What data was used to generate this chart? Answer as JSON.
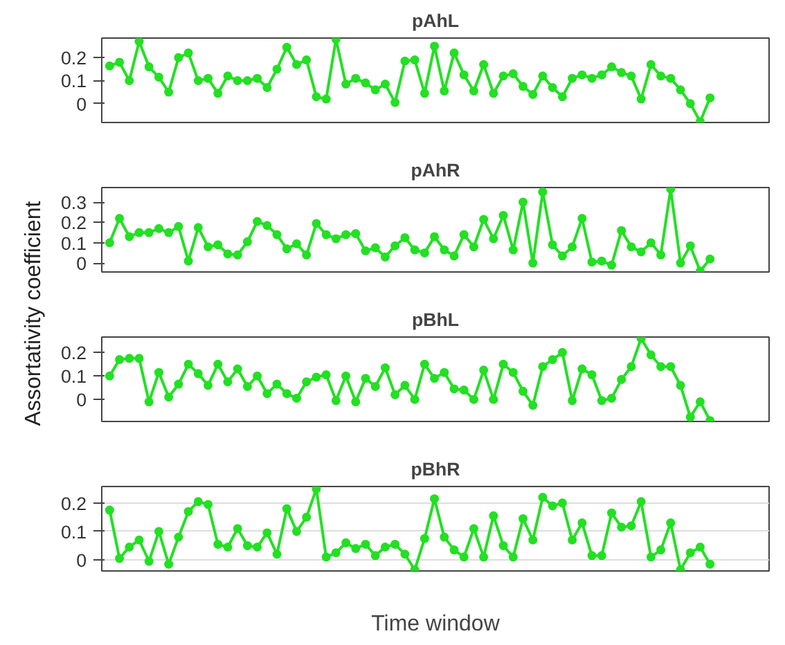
{
  "chart_data": [
    {
      "type": "line",
      "title": "pAhL",
      "ylabel": "Assortativity coefficient",
      "categories": [
        null,
        null,
        null,
        null,
        null,
        null,
        null,
        null,
        null,
        null,
        null,
        null,
        null,
        null,
        null,
        null,
        null,
        null,
        null,
        null,
        null,
        null,
        null,
        null,
        null,
        null,
        null,
        null,
        null,
        null,
        null,
        null,
        null,
        null,
        null,
        null,
        null,
        null,
        null,
        null,
        null,
        null,
        null,
        null,
        null,
        null,
        null,
        null,
        null,
        null,
        null,
        null,
        null,
        null,
        null,
        null,
        null,
        null,
        null,
        null,
        null,
        null
      ],
      "ylim": [
        -0.082,
        0.285
      ],
      "yticks": [
        0,
        0.1,
        0.2
      ],
      "tick_labels": "y",
      "grid": false,
      "marker": "circle",
      "line_style": "solid",
      "series": [
        {
          "color": "#22e022",
          "values": [
            0.164,
            0.18,
            0.1,
            0.27,
            0.16,
            0.115,
            0.05,
            0.2,
            0.22,
            0.1,
            0.11,
            0.045,
            0.12,
            0.1,
            0.1,
            0.11,
            0.07,
            0.15,
            0.245,
            0.17,
            0.19,
            0.03,
            0.02,
            0.28,
            0.085,
            0.11,
            0.09,
            0.06,
            0.085,
            0.005,
            0.185,
            0.19,
            0.045,
            0.25,
            0.055,
            0.22,
            0.125,
            0.055,
            0.17,
            0.045,
            0.12,
            0.13,
            0.075,
            0.04,
            0.12,
            0.07,
            0.03,
            0.11,
            0.125,
            0.11,
            0.125,
            0.16,
            0.135,
            0.12,
            0.02,
            0.17,
            0.12,
            0.11,
            0.06,
            0.0,
            -0.078,
            0.025
          ]
        }
      ]
    },
    {
      "type": "line",
      "title": "pAhR",
      "categories": [
        null,
        null,
        null,
        null,
        null,
        null,
        null,
        null,
        null,
        null,
        null,
        null,
        null,
        null,
        null,
        null,
        null,
        null,
        null,
        null,
        null,
        null,
        null,
        null,
        null,
        null,
        null,
        null,
        null,
        null,
        null,
        null,
        null,
        null,
        null,
        null,
        null,
        null,
        null,
        null,
        null,
        null,
        null,
        null,
        null,
        null,
        null,
        null,
        null,
        null,
        null,
        null,
        null,
        null,
        null,
        null,
        null,
        null,
        null,
        null,
        null,
        null
      ],
      "ylim": [
        -0.044,
        0.372
      ],
      "yticks": [
        0,
        0.1,
        0.2,
        0.3
      ],
      "tick_labels": "y",
      "grid": false,
      "marker": "circle",
      "line_style": "solid",
      "series": [
        {
          "color": "#22e022",
          "values": [
            0.1,
            0.22,
            0.13,
            0.15,
            0.15,
            0.17,
            0.15,
            0.18,
            0.01,
            0.175,
            0.08,
            0.09,
            0.045,
            0.04,
            0.105,
            0.205,
            0.185,
            0.14,
            0.07,
            0.095,
            0.04,
            0.195,
            0.14,
            0.12,
            0.14,
            0.145,
            0.06,
            0.075,
            0.03,
            0.085,
            0.125,
            0.065,
            0.05,
            0.13,
            0.065,
            0.035,
            0.14,
            0.08,
            0.215,
            0.12,
            0.235,
            0.065,
            0.3,
            0.0,
            0.35,
            0.09,
            0.035,
            0.08,
            0.22,
            0.005,
            0.01,
            -0.01,
            0.16,
            0.08,
            0.055,
            0.1,
            0.04,
            0.365,
            0.0,
            0.085,
            -0.04,
            0.02
          ]
        }
      ]
    },
    {
      "type": "line",
      "title": "pBhL",
      "categories": [
        null,
        null,
        null,
        null,
        null,
        null,
        null,
        null,
        null,
        null,
        null,
        null,
        null,
        null,
        null,
        null,
        null,
        null,
        null,
        null,
        null,
        null,
        null,
        null,
        null,
        null,
        null,
        null,
        null,
        null,
        null,
        null,
        null,
        null,
        null,
        null,
        null,
        null,
        null,
        null,
        null,
        null,
        null,
        null,
        null,
        null,
        null,
        null,
        null,
        null,
        null,
        null,
        null,
        null,
        null,
        null,
        null,
        null,
        null,
        null,
        null,
        null
      ],
      "ylim": [
        -0.094,
        0.266
      ],
      "yticks": [
        0,
        0.1,
        0.2
      ],
      "tick_labels": "y",
      "grid": false,
      "marker": "circle",
      "line_style": "solid",
      "series": [
        {
          "color": "#22e022",
          "values": [
            0.1,
            0.17,
            0.175,
            0.175,
            -0.01,
            0.115,
            0.01,
            0.065,
            0.15,
            0.11,
            0.06,
            0.15,
            0.075,
            0.13,
            0.055,
            0.1,
            0.025,
            0.065,
            0.025,
            0.005,
            0.075,
            0.095,
            0.105,
            -0.005,
            0.1,
            -0.01,
            0.09,
            0.055,
            0.135,
            0.02,
            0.06,
            0.0,
            0.15,
            0.09,
            0.115,
            0.045,
            0.04,
            0.0,
            0.125,
            0.0,
            0.15,
            0.115,
            0.035,
            -0.025,
            0.14,
            0.17,
            0.2,
            -0.005,
            0.13,
            0.105,
            -0.005,
            0.005,
            0.085,
            0.14,
            0.26,
            0.19,
            0.14,
            0.14,
            0.06,
            -0.075,
            -0.01,
            -0.09
          ]
        }
      ]
    },
    {
      "type": "line",
      "title": "pBhR",
      "xlabel": "Time window",
      "categories": [
        null,
        null,
        null,
        null,
        null,
        null,
        null,
        null,
        null,
        null,
        null,
        null,
        null,
        null,
        null,
        null,
        null,
        null,
        null,
        null,
        null,
        null,
        null,
        null,
        null,
        null,
        null,
        null,
        null,
        null,
        null,
        null,
        null,
        null,
        null,
        null,
        null,
        null,
        null,
        null,
        null,
        null,
        null,
        null,
        null,
        null,
        null,
        null,
        null,
        null,
        null,
        null,
        null,
        null,
        null,
        null,
        null,
        null,
        null,
        null,
        null,
        null
      ],
      "ylim": [
        -0.039,
        0.258
      ],
      "yticks": [
        0,
        0.1,
        0.2
      ],
      "tick_labels": "y",
      "grid": "y",
      "marker": "circle",
      "line_style": "solid",
      "series": [
        {
          "color": "#22e022",
          "values": [
            0.175,
            0.005,
            0.045,
            0.07,
            -0.005,
            0.1,
            -0.015,
            0.08,
            0.17,
            0.205,
            0.195,
            0.055,
            0.045,
            0.11,
            0.05,
            0.045,
            0.095,
            0.02,
            0.18,
            0.1,
            0.15,
            0.25,
            0.01,
            0.025,
            0.06,
            0.04,
            0.055,
            0.015,
            0.045,
            0.055,
            0.02,
            -0.035,
            0.075,
            0.215,
            0.08,
            0.035,
            0.01,
            0.11,
            0.01,
            0.155,
            0.05,
            0.01,
            0.145,
            0.07,
            0.22,
            0.19,
            0.2,
            0.07,
            0.13,
            0.015,
            0.015,
            0.165,
            0.115,
            0.12,
            0.205,
            0.01,
            0.035,
            0.13,
            -0.035,
            0.025,
            0.045,
            -0.015
          ]
        }
      ]
    }
  ]
}
